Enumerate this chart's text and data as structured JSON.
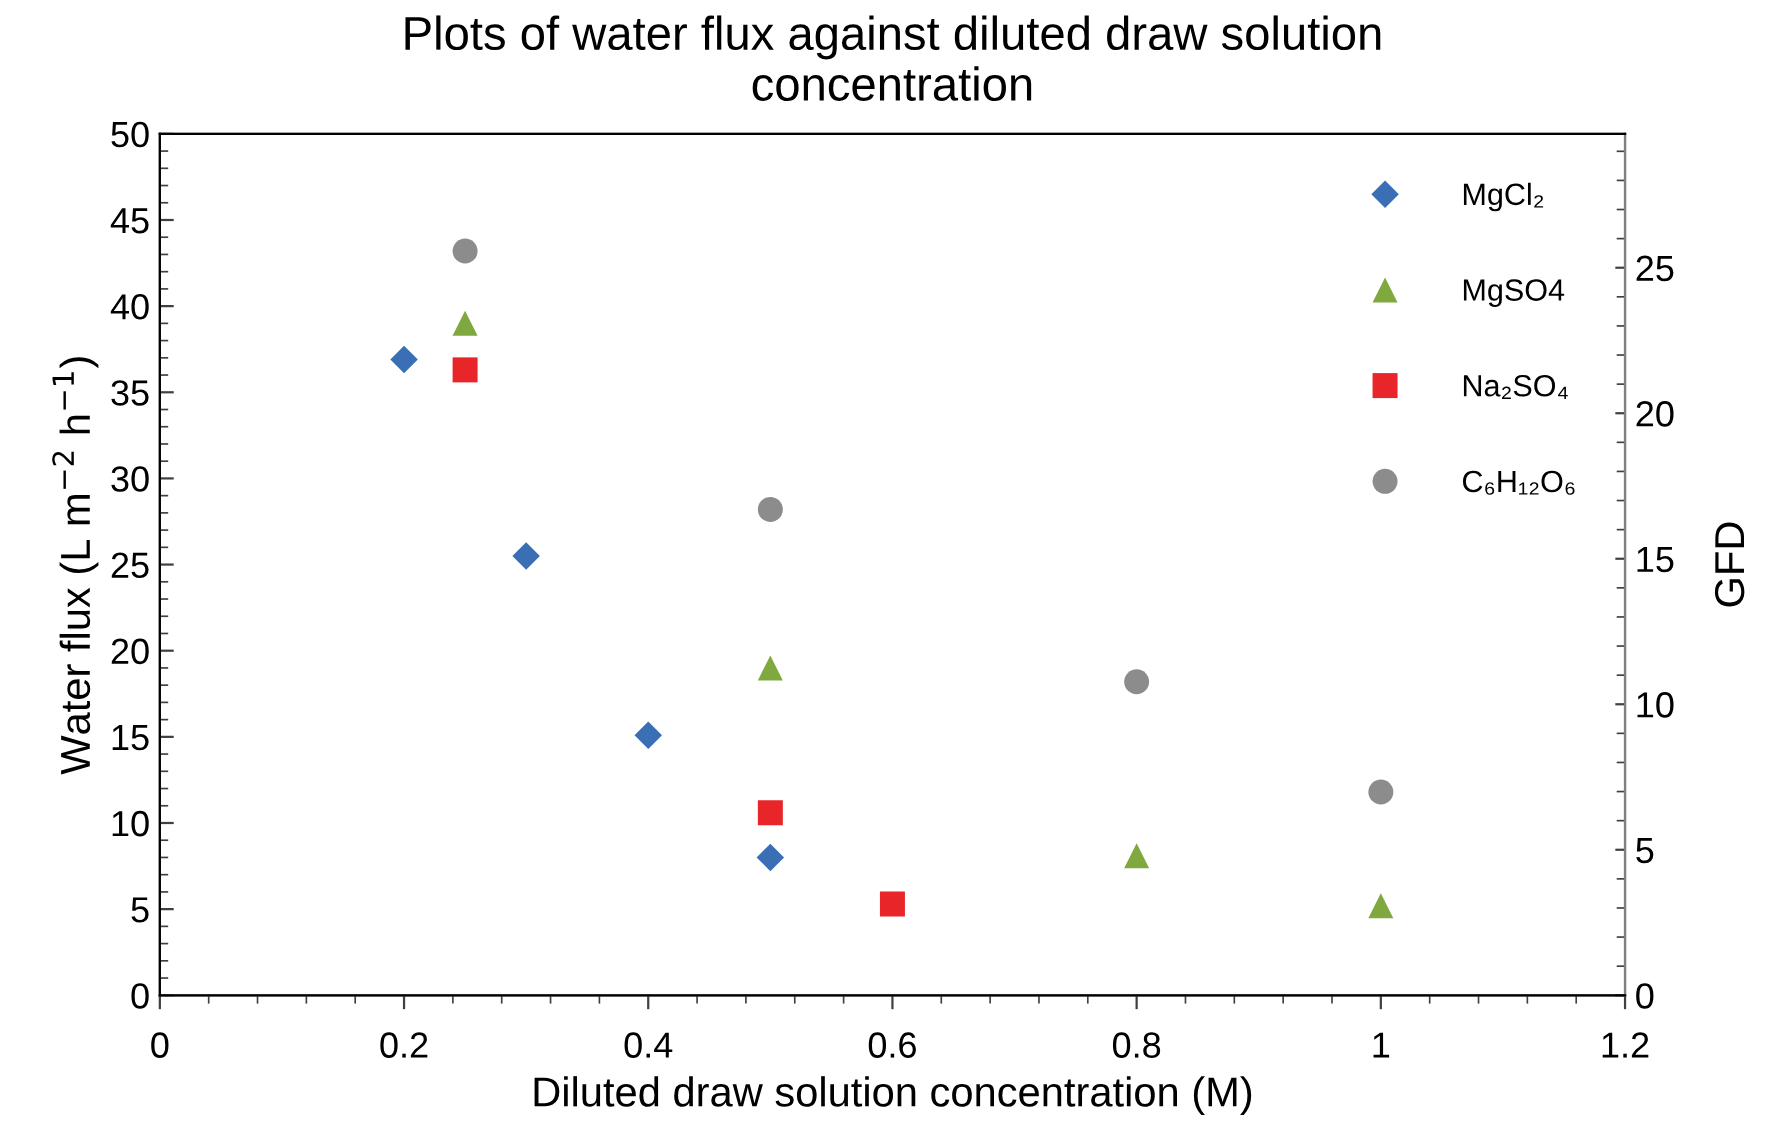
{
  "chart_data": {
    "type": "scatter",
    "title": "Plots of water flux against diluted draw solution\nconcentration",
    "xlabel": "Diluted draw solution concentration (M)",
    "ylabel": "Water flux (L m$^{−2}$ h$^{−1}$)",
    "y2label": "GFD",
    "xlim": [
      0,
      1.2
    ],
    "xticks": [
      0,
      0.2,
      0.4,
      0.6,
      0.8,
      1,
      1.2
    ],
    "ylim": [
      0,
      50
    ],
    "yticks": [
      0,
      5,
      10,
      15,
      20,
      25,
      30,
      35,
      40,
      45,
      50
    ],
    "y2lim": [
      0,
      29.6
    ],
    "y2ticks": [
      0,
      5,
      10,
      15,
      20,
      25
    ],
    "legend": "top right",
    "grid": false,
    "series": [
      {
        "name": "MgCl₂",
        "color": "#3a6eb5",
        "marker": "diamond",
        "x": [
          0.2,
          0.3,
          0.4,
          0.5
        ],
        "values": [
          36.9,
          25.5,
          15.1,
          8.0
        ]
      },
      {
        "name": "MgSO4",
        "color": "#7fa83f",
        "marker": "triangle",
        "x": [
          0.25,
          0.5,
          0.8,
          1.0
        ],
        "values": [
          39.0,
          19.0,
          8.1,
          5.2
        ]
      },
      {
        "name": "Na₂SO₄",
        "color": "#e8262a",
        "marker": "square",
        "x": [
          0.25,
          0.5,
          0.6
        ],
        "values": [
          36.3,
          10.6,
          5.3
        ]
      },
      {
        "name": "C₆H₁₂O₆",
        "color": "#8c8c8c",
        "marker": "circle",
        "x": [
          0.25,
          0.5,
          0.8,
          1.0
        ],
        "values": [
          43.2,
          28.2,
          18.2,
          11.8
        ]
      }
    ]
  }
}
